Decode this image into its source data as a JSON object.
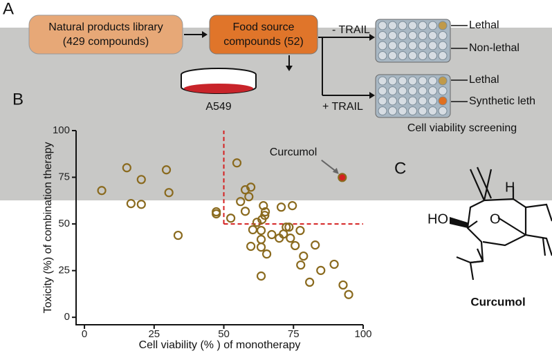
{
  "panel_a": {
    "label": "A",
    "library_box": [
      "Natural products library",
      "(429 compounds)"
    ],
    "food_box": [
      "Food source",
      "compounds (52)"
    ],
    "cell_line": "A549",
    "minus_trail": "- TRAIL",
    "plus_trail": "+ TRAIL",
    "top_plate": [
      "Lethal",
      "Non-lethal"
    ],
    "bottom_plate": [
      "Lethal",
      "Synthetic leth"
    ],
    "screening": "Cell viability screening"
  },
  "panel_c": {
    "label": "C",
    "name": "Curcumol",
    "hydroxyl": "HO",
    "oxygen": "O",
    "hydrogen": "H"
  },
  "chart_data": {
    "type": "scatter",
    "label": "B",
    "xlabel": "Cell viability (% ) of monotherapy",
    "ylabel": "Toxicity (%) of combination therapy",
    "xlim": [
      -3,
      100
    ],
    "ylim": [
      -4,
      100
    ],
    "xticks": [
      0,
      25,
      50,
      75,
      100
    ],
    "yticks": [
      0,
      25,
      50,
      75,
      100
    ],
    "threshold_x": 50,
    "threshold_y": 50,
    "threshold_color": "#d42020",
    "series": [
      {
        "name": "Compounds",
        "color": "#8a6a1e",
        "x": [
          15.2,
          29.4,
          20.4,
          6.2,
          30.3,
          16.7,
          20.4,
          33.6,
          54.7,
          47.3,
          47.3,
          57.7,
          59.7,
          59,
          56,
          64.2,
          70.6,
          74.6,
          52.5,
          57.7,
          64.9,
          63.7,
          64.7,
          61.9,
          60.4,
          63.4,
          67.2,
          69.9,
          71.4,
          72.4,
          73.4,
          73.9,
          63.4,
          63.4,
          59.7,
          65.4,
          75.6,
          77.4,
          82.8,
          78.6,
          77.6,
          80.8,
          84.8,
          89.6,
          92.8,
          94.8,
          63.4
        ],
        "values": [
          80.1,
          79,
          73.8,
          67.9,
          66.8,
          60.9,
          60.5,
          43.9,
          82.7,
          56.5,
          55.4,
          68.3,
          69.7,
          64.6,
          62,
          59.8,
          59,
          59.8,
          53.1,
          56.8,
          56.5,
          52.4,
          54.6,
          50.9,
          46.9,
          46.5,
          44.3,
          42.4,
          44.6,
          48.3,
          48.3,
          42.4,
          41.7,
          37.6,
          38,
          33.9,
          38.4,
          46.5,
          38.7,
          32.8,
          28,
          18.8,
          25.1,
          28.4,
          17.3,
          12.2,
          22.1
        ]
      },
      {
        "name": "Curcumol",
        "color": "#d42020",
        "x": [
          92.5
        ],
        "values": [
          74.9
        ]
      }
    ],
    "annotation": "Curcumol"
  }
}
